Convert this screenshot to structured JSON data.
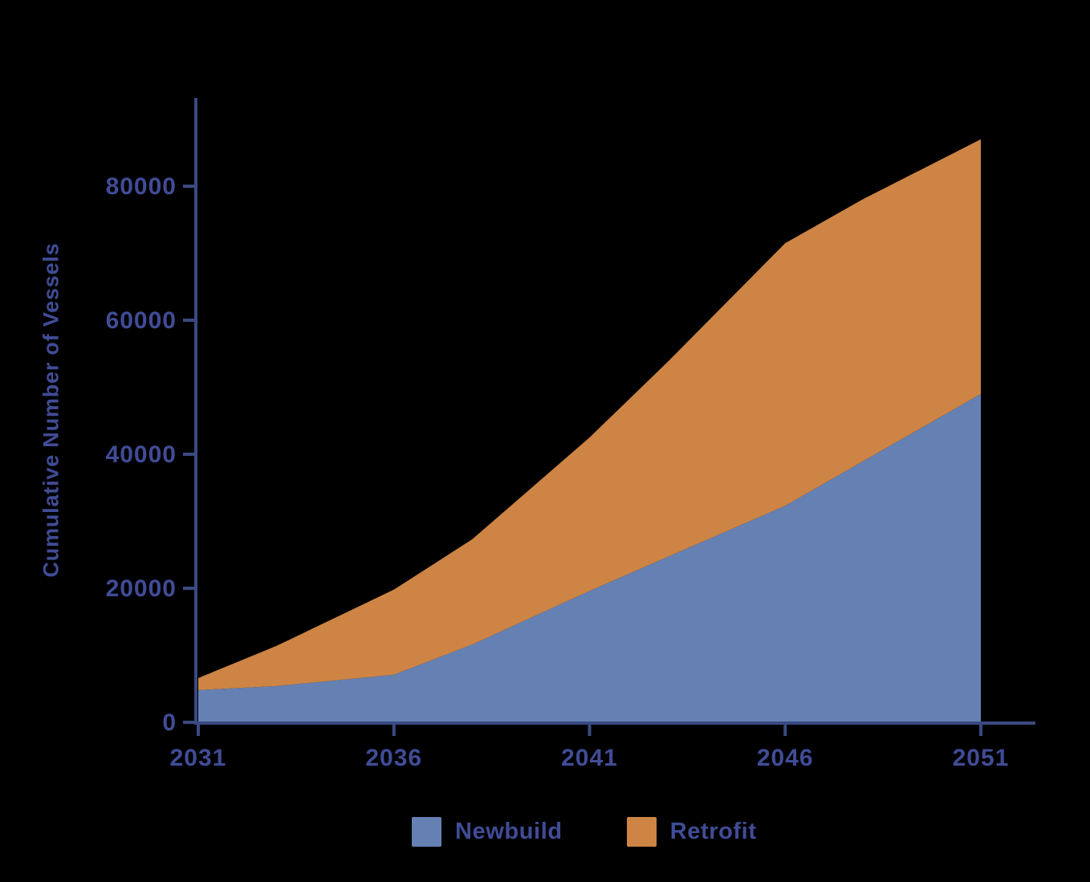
{
  "chart_data": {
    "type": "area",
    "stacked": true,
    "x": [
      2031,
      2033,
      2036,
      2038,
      2041,
      2043,
      2046,
      2048,
      2051
    ],
    "series": [
      {
        "name": "Newbuild",
        "color": "#6581B3",
        "values": [
          4800,
          5400,
          7100,
          11600,
          19600,
          24700,
          32300,
          39000,
          49000
        ]
      },
      {
        "name": "Retrofit",
        "color": "#CD8444",
        "values": [
          1800,
          6000,
          12700,
          15700,
          22900,
          29100,
          39200,
          39100,
          38000
        ]
      }
    ],
    "title": "",
    "xlabel": "",
    "ylabel": "Cumulative Number of Vessels",
    "xticks": [
      2031,
      2036,
      2041,
      2046,
      2051
    ],
    "yticks": [
      0,
      20000,
      40000,
      60000,
      80000
    ],
    "xlim": [
      2031,
      2051
    ],
    "ylim": [
      0,
      93000
    ],
    "grid": false,
    "legend_position": "bottom",
    "background_color": "#000000",
    "axis_color": "#3A4A82",
    "text_color": "#404C96"
  }
}
